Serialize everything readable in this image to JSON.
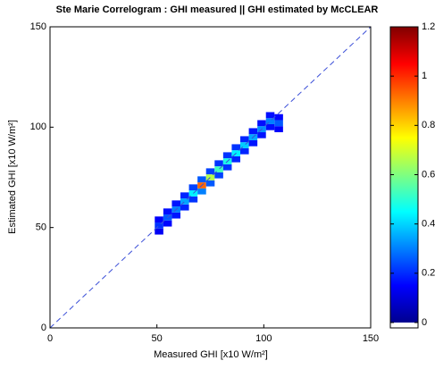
{
  "chart_data": {
    "type": "density",
    "title": "Ste Marie Correlogram : GHI measured || GHI estimated by McCLEAR",
    "x_label": "Measured GHI [x10 W/m²]",
    "y_label": "Estimated GHI [x10 W/m²]",
    "xlim": [
      0,
      150
    ],
    "ylim": [
      0,
      150
    ],
    "xticks": [
      0,
      50,
      100,
      150
    ],
    "yticks": [
      0,
      50,
      100,
      150
    ],
    "clim": [
      0,
      1.2
    ],
    "cticks": [
      0,
      0.2,
      0.4,
      0.6,
      0.8,
      1,
      1.2
    ],
    "reference_line_color": "#3b4fd8",
    "x": [
      51,
      51,
      51,
      55,
      55,
      55,
      59,
      59,
      59,
      63,
      63,
      63,
      67,
      67,
      67,
      71,
      71,
      71,
      75,
      75,
      75,
      79,
      79,
      79,
      83,
      83,
      83,
      87,
      87,
      87,
      91,
      91,
      91,
      95,
      95,
      95,
      99,
      99,
      99,
      103,
      103,
      103,
      107,
      107,
      107
    ],
    "y": [
      48,
      51,
      54,
      52,
      55,
      58,
      56,
      59,
      62,
      60,
      63,
      66,
      64,
      67,
      70,
      68,
      71,
      74,
      72,
      75,
      78,
      76,
      79,
      82,
      80,
      83,
      86,
      84,
      87,
      90,
      88,
      91,
      94,
      92,
      95,
      98,
      96,
      99,
      102,
      100,
      103,
      106,
      99,
      102,
      105
    ],
    "values": [
      0.02,
      0.1,
      0.03,
      0.04,
      0.15,
      0.05,
      0.06,
      0.2,
      0.06,
      0.08,
      0.25,
      0.08,
      0.1,
      0.35,
      0.12,
      0.2,
      0.9,
      0.15,
      0.15,
      0.6,
      0.12,
      0.12,
      0.45,
      0.1,
      0.1,
      0.4,
      0.1,
      0.08,
      0.35,
      0.1,
      0.08,
      0.3,
      0.08,
      0.06,
      0.25,
      0.06,
      0.06,
      0.22,
      0.05,
      0.05,
      0.2,
      0.05,
      0.03,
      0.15,
      0.04
    ]
  }
}
